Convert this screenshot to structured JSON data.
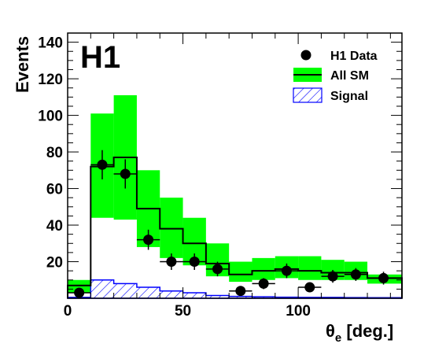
{
  "chart_data": {
    "type": "bar",
    "logo": "H1",
    "xlabel": "θ",
    "xlabel_sub": "e",
    "xlabel_unit": " [deg.]",
    "ylabel": "Events",
    "xlim": [
      0,
      145
    ],
    "ylim": [
      0,
      145
    ],
    "x_ticks": [
      0,
      50,
      100
    ],
    "y_ticks": [
      20,
      40,
      60,
      80,
      100,
      120,
      140
    ],
    "bin_edges": [
      0,
      10,
      20,
      30,
      40,
      50,
      60,
      70,
      80,
      90,
      100,
      110,
      120,
      130,
      145
    ],
    "series": [
      {
        "name": "H1 Data",
        "kind": "points",
        "x": [
          5,
          15,
          25,
          35,
          45,
          55,
          65,
          75,
          85,
          95,
          105,
          115,
          125,
          137
        ],
        "y": [
          3,
          73,
          68,
          32,
          20,
          20,
          16,
          4,
          8,
          15,
          6,
          12,
          13,
          11
        ],
        "y_err": [
          2,
          8,
          8,
          5.5,
          4.5,
          4.5,
          4,
          2,
          3,
          4,
          2.5,
          3.5,
          3.5,
          3.5
        ]
      },
      {
        "name": "All SM",
        "kind": "histogram_band",
        "values": [
          7,
          72,
          77,
          49,
          38,
          30,
          19,
          13,
          15,
          16,
          15,
          14,
          14,
          11
        ],
        "band_low": [
          3,
          44,
          43,
          28,
          22,
          18,
          12,
          9,
          10,
          11,
          10,
          10,
          10,
          8
        ],
        "band_high": [
          10,
          101,
          111,
          70,
          55,
          44,
          30,
          20,
          22,
          23,
          23,
          21,
          20,
          13
        ]
      },
      {
        "name": "Signal",
        "kind": "hatched_histogram",
        "values": [
          0.5,
          10,
          8,
          6,
          4,
          3,
          1.5,
          1,
          0.8,
          0.6,
          0.5,
          0.5,
          0.4,
          0.3
        ]
      }
    ],
    "colors": {
      "band": "#00ff00",
      "sm_line": "#000000",
      "signal": "#0000ff",
      "data": "#000000"
    },
    "legend_position": "top-right"
  }
}
